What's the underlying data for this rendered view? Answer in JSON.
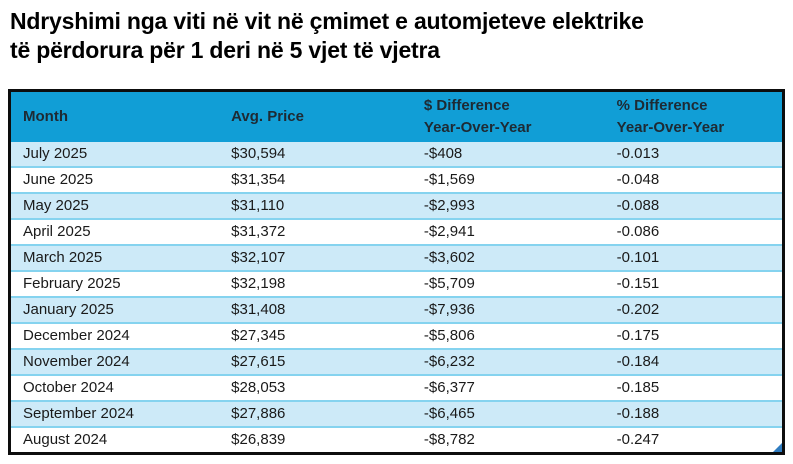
{
  "title": {
    "line1": "Ndryshimi nga viti në vit në çmimet e automjeteve elektrike",
    "line2": "të përdorura për 1 deri në 5 vjet të vjetra"
  },
  "colors": {
    "header_bg": "#119ed6",
    "row_alt_bg": "#cdeaf8",
    "row_divider": "#85d3ef",
    "table_border": "#0d0d0d",
    "title_text": "#000000",
    "body_text": "#1a1a1a",
    "header_text": "#1e2a33",
    "corner_handle": "#2f7cc0"
  },
  "table": {
    "headers": [
      {
        "line1": "Month",
        "line2": ""
      },
      {
        "line1": "Avg. Price",
        "line2": ""
      },
      {
        "line1": "$ Difference",
        "line2": "Year-Over-Year"
      },
      {
        "line1": "% Difference",
        "line2": "Year-Over-Year"
      }
    ],
    "rows": [
      {
        "month": "July 2025",
        "avg_price": "$30,594",
        "usd_diff": "-$408",
        "pct_diff": "-0.013"
      },
      {
        "month": "June 2025",
        "avg_price": "$31,354",
        "usd_diff": "-$1,569",
        "pct_diff": "-0.048"
      },
      {
        "month": "May 2025",
        "avg_price": "$31,110",
        "usd_diff": "-$2,993",
        "pct_diff": "-0.088"
      },
      {
        "month": "April 2025",
        "avg_price": "$31,372",
        "usd_diff": "-$2,941",
        "pct_diff": "-0.086"
      },
      {
        "month": "March 2025",
        "avg_price": "$32,107",
        "usd_diff": "-$3,602",
        "pct_diff": "-0.101"
      },
      {
        "month": "February 2025",
        "avg_price": "$32,198",
        "usd_diff": "-$5,709",
        "pct_diff": "-0.151"
      },
      {
        "month": "January 2025",
        "avg_price": "$31,408",
        "usd_diff": "-$7,936",
        "pct_diff": "-0.202"
      },
      {
        "month": "December 2024",
        "avg_price": "$27,345",
        "usd_diff": "-$5,806",
        "pct_diff": "-0.175"
      },
      {
        "month": "November 2024",
        "avg_price": "$27,615",
        "usd_diff": "-$6,232",
        "pct_diff": "-0.184"
      },
      {
        "month": "October 2024",
        "avg_price": "$28,053",
        "usd_diff": "-$6,377",
        "pct_diff": "-0.185"
      },
      {
        "month": "September 2024",
        "avg_price": "$27,886",
        "usd_diff": "-$6,465",
        "pct_diff": "-0.188"
      },
      {
        "month": "August 2024",
        "avg_price": "$26,839",
        "usd_diff": "-$8,782",
        "pct_diff": "-0.247"
      }
    ]
  },
  "chart_data": {
    "type": "table",
    "title": "Ndryshimi nga viti në vit në çmimet e automjeteve elektrike të përdorura për 1 deri në 5 vjet të vjetra",
    "columns": [
      "Month",
      "Avg. Price",
      "$ Difference Year-Over-Year",
      "% Difference Year-Over-Year"
    ],
    "rows": [
      [
        "July 2025",
        "$30,594",
        "-$408",
        "-0.013"
      ],
      [
        "June 2025",
        "$31,354",
        "-$1,569",
        "-0.048"
      ],
      [
        "May 2025",
        "$31,110",
        "-$2,993",
        "-0.088"
      ],
      [
        "April 2025",
        "$31,372",
        "-$2,941",
        "-0.086"
      ],
      [
        "March 2025",
        "$32,107",
        "-$3,602",
        "-0.101"
      ],
      [
        "February 2025",
        "$32,198",
        "-$5,709",
        "-0.151"
      ],
      [
        "January 2025",
        "$31,408",
        "-$7,936",
        "-0.202"
      ],
      [
        "December 2024",
        "$27,345",
        "-$5,806",
        "-0.175"
      ],
      [
        "November 2024",
        "$27,615",
        "-$6,232",
        "-0.184"
      ],
      [
        "October 2024",
        "$28,053",
        "-$6,377",
        "-0.185"
      ],
      [
        "September 2024",
        "$27,886",
        "-$6,465",
        "-0.188"
      ],
      [
        "August 2024",
        "$26,839",
        "-$8,782",
        "-0.247"
      ]
    ]
  }
}
